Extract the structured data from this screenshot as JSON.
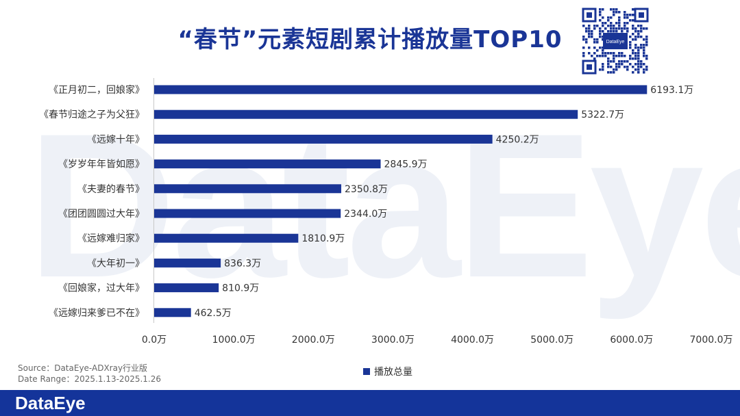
{
  "watermark": "DataEye",
  "header": {
    "title": "“春节”元素短剧累计播放量TOP10"
  },
  "qr": {
    "logo_text": "DataEye"
  },
  "source": {
    "line1": "Source：DataEye-ADXray行业版",
    "line2": "Date Range：2025.1.13-2025.1.26"
  },
  "legend": {
    "label": "播放总量"
  },
  "footer": {
    "logo": "DataEye"
  },
  "colors": {
    "bar": "#1a3596",
    "footer": "#14349a"
  },
  "chart_data": {
    "type": "bar",
    "orientation": "horizontal",
    "title": "“春节”元素短剧累计播放量TOP10",
    "categories": [
      "《正月初二，回娘家》",
      "《春节归途之子为父狂》",
      "《远嫁十年》",
      "《岁岁年年皆如愿》",
      "《夫妻的春节》",
      "《团团圆圆过大年》",
      "《远嫁难归家》",
      "《大年初一》",
      "《回娘家，过大年》",
      "《远嫁归来爹已不在》"
    ],
    "series": [
      {
        "name": "播放总量",
        "values": [
          6193.1,
          5322.7,
          4250.2,
          2845.9,
          2350.8,
          2344.0,
          1810.9,
          836.3,
          810.9,
          462.5
        ]
      }
    ],
    "value_labels": [
      "6193.1万",
      "5322.7万",
      "4250.2万",
      "2845.9万",
      "2350.8万",
      "2344.0万",
      "1810.9万",
      "836.3万",
      "810.9万",
      "462.5万"
    ],
    "xlim": [
      0,
      7000
    ],
    "x_ticks": [
      "0.0万",
      "1000.0万",
      "2000.0万",
      "3000.0万",
      "4000.0万",
      "5000.0万",
      "6000.0万",
      "7000.0万"
    ],
    "grid": false,
    "legend_position": "bottom"
  }
}
